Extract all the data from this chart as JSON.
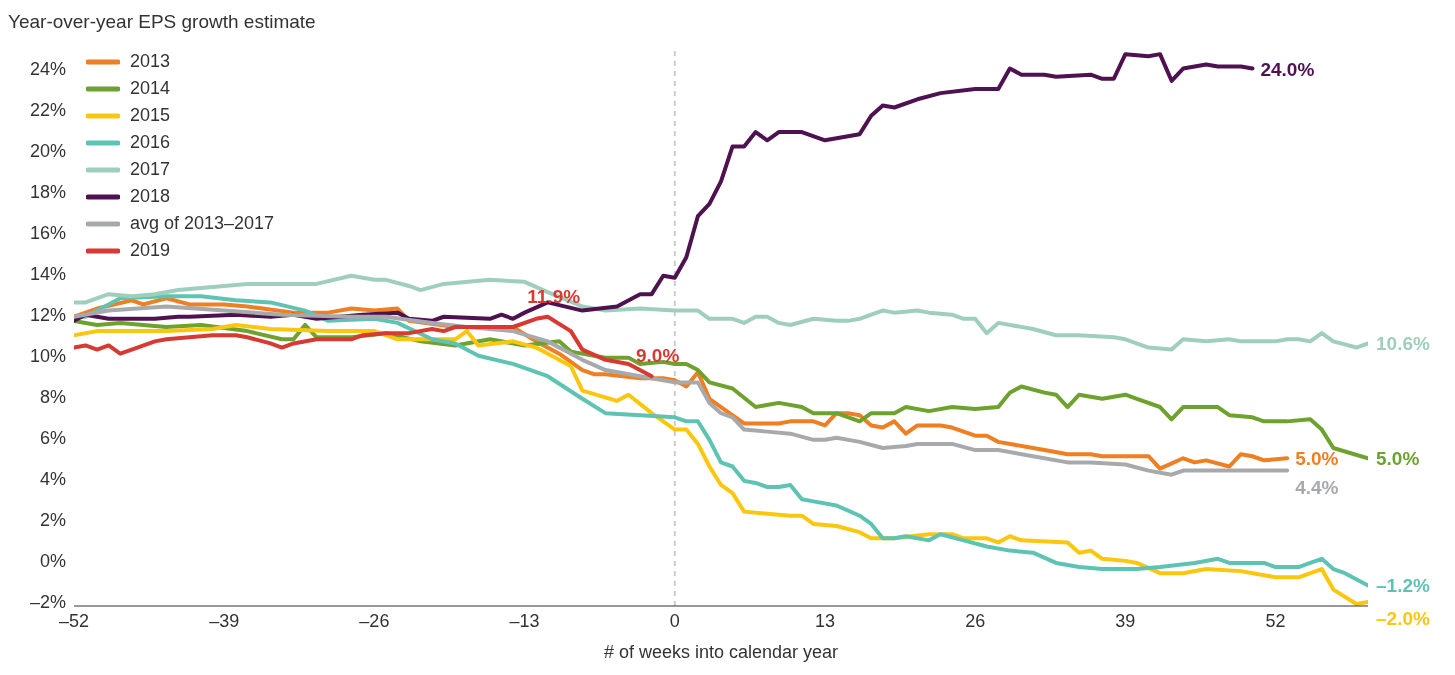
{
  "chart_data": {
    "type": "line",
    "title": "Year-over-year EPS growth estimate",
    "xlabel": "# of weeks into calendar year",
    "xlim": [
      -52,
      60
    ],
    "xticks": [
      {
        "value": -52,
        "label": "–52"
      },
      {
        "value": -39,
        "label": "–39"
      },
      {
        "value": -26,
        "label": "–26"
      },
      {
        "value": -13,
        "label": "–13"
      },
      0,
      13,
      26,
      39,
      52
    ],
    "ylim": [
      -2.2,
      25
    ],
    "yticks": [
      {
        "value": -2,
        "label": "–2%"
      },
      {
        "value": 0,
        "label": "0%"
      },
      {
        "value": 2,
        "label": "2%"
      },
      {
        "value": 4,
        "label": "4%"
      },
      {
        "value": 6,
        "label": "6%"
      },
      {
        "value": 8,
        "label": "8%"
      },
      {
        "value": 10,
        "label": "10%"
      },
      {
        "value": 12,
        "label": "12%"
      },
      {
        "value": 14,
        "label": "14%"
      },
      {
        "value": 16,
        "label": "16%"
      },
      {
        "value": 18,
        "label": "18%"
      },
      {
        "value": 20,
        "label": "20%"
      },
      {
        "value": 22,
        "label": "22%"
      },
      {
        "value": 24,
        "label": "24%"
      }
    ],
    "legend": "top left",
    "ref_lines": [
      {
        "axis": "x",
        "value": 0,
        "color": "#cccccc",
        "line_style": "dashed"
      }
    ],
    "series": [
      {
        "name": "2013",
        "color": "#ee7f22",
        "x": [
          -52,
          -50,
          -47,
          -46,
          -44,
          -42,
          -39,
          -37,
          -33,
          -30,
          -28,
          -26,
          -24,
          -23,
          -19,
          -16,
          -14,
          -12,
          -10,
          -8,
          -7,
          -6,
          -3,
          -1,
          0,
          1,
          2,
          3,
          4,
          6,
          9,
          10,
          12,
          13,
          14,
          15,
          16,
          17,
          18,
          19,
          20,
          21,
          23,
          24,
          26,
          27,
          28,
          31,
          32,
          34,
          36,
          37,
          41,
          42,
          44,
          45,
          46,
          48,
          49,
          50,
          51,
          53
        ],
        "values": [
          11.9,
          12.3,
          12.7,
          12.5,
          12.8,
          12.5,
          12.5,
          12.4,
          12.1,
          12.1,
          12.3,
          12.2,
          12.3,
          11.7,
          11.4,
          11.4,
          11.4,
          10.7,
          10.1,
          9.3,
          9.1,
          9.1,
          8.9,
          8.9,
          8.8,
          8.5,
          9.2,
          7.9,
          7.5,
          6.7,
          6.7,
          6.8,
          6.8,
          6.6,
          7.2,
          7.2,
          7.1,
          6.6,
          6.5,
          6.8,
          6.2,
          6.6,
          6.6,
          6.5,
          6.1,
          6.1,
          5.8,
          5.5,
          5.4,
          5.2,
          5.2,
          5.1,
          5.1,
          4.5,
          5.0,
          4.8,
          4.9,
          4.6,
          5.2,
          5.1,
          4.9,
          5.0
        ]
      },
      {
        "name": "2014",
        "color": "#6da22f",
        "x": [
          -52,
          -50,
          -48,
          -44,
          -41,
          -37,
          -34,
          -33,
          -32,
          -31,
          -28,
          -25,
          -22,
          -19,
          -16,
          -13,
          -10,
          -9,
          -6,
          -4,
          -3,
          -1,
          0,
          1,
          2,
          3,
          5,
          7,
          9,
          11,
          12,
          14,
          16,
          17,
          19,
          20,
          22,
          24,
          26,
          28,
          29,
          30,
          32,
          33,
          34,
          35,
          37,
          39,
          40,
          42,
          43,
          44,
          47,
          48,
          50,
          51,
          53,
          55,
          56,
          57,
          60
        ],
        "values": [
          11.7,
          11.5,
          11.6,
          11.4,
          11.5,
          11.2,
          10.8,
          10.8,
          11.5,
          10.9,
          10.9,
          11.1,
          10.7,
          10.5,
          10.8,
          10.5,
          10.7,
          10.2,
          9.9,
          9.9,
          9.6,
          9.7,
          9.6,
          9.6,
          9.3,
          8.7,
          8.4,
          7.5,
          7.7,
          7.5,
          7.2,
          7.2,
          6.8,
          7.2,
          7.2,
          7.5,
          7.3,
          7.5,
          7.4,
          7.5,
          8.2,
          8.5,
          8.2,
          8.1,
          7.5,
          8.1,
          7.9,
          8.1,
          7.9,
          7.5,
          6.9,
          7.5,
          7.5,
          7.1,
          7.0,
          6.8,
          6.8,
          6.9,
          6.4,
          5.5,
          5.0
        ]
      },
      {
        "name": "2015",
        "color": "#fbc70e",
        "x": [
          -52,
          -50,
          -44,
          -40,
          -38,
          -35,
          -30,
          -26,
          -24,
          -19,
          -18,
          -17,
          -14,
          -12,
          -9,
          -8,
          -5,
          -4,
          -2,
          0,
          1,
          2,
          3,
          4,
          5,
          6,
          8,
          10,
          11,
          12,
          14,
          16,
          17,
          19,
          22,
          24,
          25,
          27,
          28,
          29,
          30,
          34,
          35,
          36,
          37,
          39,
          40,
          42,
          44,
          46,
          49,
          52,
          54,
          56,
          57,
          59,
          60
        ],
        "values": [
          11.0,
          11.2,
          11.2,
          11.3,
          11.5,
          11.3,
          11.2,
          11.2,
          10.8,
          10.8,
          11.2,
          10.5,
          10.7,
          10.4,
          9.5,
          8.3,
          7.8,
          8.1,
          7.2,
          6.4,
          6.4,
          5.7,
          4.6,
          3.7,
          3.3,
          2.4,
          2.3,
          2.2,
          2.2,
          1.8,
          1.7,
          1.4,
          1.1,
          1.1,
          1.3,
          1.3,
          1.1,
          1.1,
          0.9,
          1.2,
          1.0,
          0.9,
          0.4,
          0.5,
          0.1,
          0.0,
          -0.1,
          -0.6,
          -0.6,
          -0.4,
          -0.5,
          -0.8,
          -0.8,
          -0.4,
          -1.4,
          -2.1,
          -2.0
        ]
      },
      {
        "name": "2016",
        "color": "#5fc3b4",
        "x": [
          -52,
          -51,
          -49,
          -48,
          -44,
          -41,
          -38,
          -35,
          -32,
          -30,
          -26,
          -24,
          -21,
          -19,
          -17,
          -14,
          -11,
          -8,
          -6,
          -3,
          0,
          1,
          2,
          3,
          4,
          5,
          6,
          7,
          8,
          9,
          10,
          11,
          12,
          14,
          16,
          17,
          18,
          19,
          20,
          22,
          23,
          25,
          27,
          29,
          31,
          33,
          35,
          37,
          40,
          42,
          45,
          47,
          48,
          51,
          52,
          54,
          55,
          56,
          57,
          58,
          60
        ],
        "values": [
          11.9,
          11.9,
          12.5,
          12.8,
          12.9,
          12.9,
          12.7,
          12.6,
          12.2,
          11.7,
          11.8,
          11.6,
          10.8,
          10.6,
          10.0,
          9.6,
          9.0,
          7.9,
          7.2,
          7.1,
          7.0,
          6.8,
          6.8,
          5.9,
          4.8,
          4.6,
          3.9,
          3.8,
          3.6,
          3.6,
          3.7,
          3.0,
          2.9,
          2.7,
          2.2,
          1.8,
          1.1,
          1.1,
          1.2,
          1.0,
          1.3,
          1.0,
          0.7,
          0.5,
          0.4,
          -0.1,
          -0.3,
          -0.4,
          -0.4,
          -0.3,
          -0.1,
          0.1,
          -0.1,
          -0.1,
          -0.3,
          -0.3,
          -0.1,
          0.1,
          -0.4,
          -0.6,
          -1.2
        ]
      },
      {
        "name": "2017",
        "color": "#9fcfbc",
        "x": [
          -52,
          -51,
          -49,
          -47,
          -45,
          -43,
          -39,
          -37,
          -33,
          -31,
          -28,
          -26,
          -25,
          -23,
          -22,
          -20,
          -16,
          -13,
          -11,
          -8,
          -6,
          -3,
          0,
          2,
          3,
          5,
          6,
          7,
          8,
          9,
          10,
          12,
          14,
          15,
          16,
          17,
          18,
          19,
          21,
          22,
          24,
          25,
          26,
          27,
          28,
          31,
          33,
          35,
          38,
          39,
          41,
          43,
          44,
          46,
          48,
          49,
          52,
          53,
          54,
          55,
          56,
          57,
          59,
          60
        ],
        "values": [
          12.6,
          12.6,
          13.0,
          12.9,
          13.0,
          13.2,
          13.4,
          13.5,
          13.5,
          13.5,
          13.9,
          13.7,
          13.7,
          13.4,
          13.2,
          13.5,
          13.7,
          13.6,
          13.1,
          12.4,
          12.2,
          12.3,
          12.2,
          12.2,
          11.8,
          11.8,
          11.6,
          11.9,
          11.9,
          11.6,
          11.5,
          11.8,
          11.7,
          11.7,
          11.8,
          12.0,
          12.2,
          12.1,
          12.2,
          12.1,
          12.0,
          11.8,
          11.8,
          11.1,
          11.6,
          11.3,
          11.0,
          11.0,
          10.9,
          10.8,
          10.4,
          10.3,
          10.8,
          10.7,
          10.8,
          10.7,
          10.7,
          10.8,
          10.8,
          10.7,
          11.1,
          10.7,
          10.4,
          10.6
        ]
      },
      {
        "name": "2018",
        "color": "#4f1250",
        "x": [
          -52,
          -51,
          -49,
          -45,
          -43,
          -42,
          -38,
          -35,
          -33,
          -31,
          -29,
          -27,
          -24,
          -23,
          -21,
          -20,
          -16,
          -15,
          -14,
          -13,
          -11,
          -8,
          -5,
          -3,
          -2,
          -1,
          0,
          1,
          2,
          3,
          4,
          5,
          6,
          7,
          8,
          9,
          11,
          13,
          16,
          17,
          18,
          19,
          21,
          23,
          26,
          28,
          29,
          30,
          32,
          33,
          36,
          37,
          38,
          39,
          41,
          42,
          43,
          44,
          46,
          47,
          49,
          50
        ],
        "values": [
          11.7,
          12.0,
          11.8,
          11.8,
          11.9,
          11.9,
          12.0,
          11.9,
          12.0,
          11.8,
          11.9,
          12.0,
          12.1,
          11.8,
          11.7,
          11.9,
          11.8,
          12.0,
          11.8,
          12.1,
          12.6,
          12.2,
          12.4,
          13.0,
          13.0,
          13.9,
          13.8,
          14.8,
          16.8,
          17.4,
          18.5,
          20.2,
          20.2,
          20.9,
          20.5,
          20.9,
          20.9,
          20.5,
          20.8,
          21.7,
          22.2,
          22.1,
          22.5,
          22.8,
          23.0,
          23.0,
          24.0,
          23.7,
          23.7,
          23.6,
          23.7,
          23.5,
          23.5,
          24.7,
          24.6,
          24.7,
          23.4,
          24.0,
          24.2,
          24.1,
          24.1,
          24.0
        ]
      },
      {
        "name": "avg of 2013–2017",
        "color": "#a7a9ac",
        "x": [
          -52,
          -49,
          -44,
          -39,
          -34,
          -28,
          -25,
          -21,
          -18,
          -14,
          -11,
          -8,
          -6,
          -3,
          0,
          2,
          3,
          4,
          5,
          6,
          8,
          10,
          12,
          13,
          14,
          16,
          18,
          20,
          21,
          24,
          26,
          28,
          31,
          34,
          36,
          39,
          41,
          43,
          44,
          46,
          48,
          50,
          53
        ],
        "values": [
          11.9,
          12.2,
          12.4,
          12.2,
          12.0,
          11.9,
          11.9,
          11.6,
          11.4,
          11.2,
          10.7,
          9.8,
          9.3,
          9.0,
          8.7,
          8.7,
          7.7,
          7.2,
          7.0,
          6.4,
          6.3,
          6.2,
          5.9,
          5.9,
          6.0,
          5.8,
          5.5,
          5.6,
          5.7,
          5.7,
          5.4,
          5.4,
          5.1,
          4.8,
          4.8,
          4.7,
          4.4,
          4.2,
          4.4,
          4.4,
          4.4,
          4.4,
          4.4
        ]
      },
      {
        "name": "2019",
        "color": "#d73a33",
        "x": [
          -52,
          -51,
          -50,
          -49,
          -48,
          -47,
          -45,
          -44,
          -42,
          -40,
          -38,
          -37,
          -35,
          -34,
          -33,
          -31,
          -28,
          -27,
          -25,
          -23,
          -21,
          -20,
          -19,
          -14,
          -12,
          -11,
          -9,
          -8,
          -6,
          -4,
          -2
        ],
        "values": [
          10.4,
          10.5,
          10.3,
          10.5,
          10.1,
          10.3,
          10.7,
          10.8,
          10.9,
          11.0,
          11.0,
          10.9,
          10.6,
          10.4,
          10.6,
          10.8,
          10.8,
          11.0,
          11.1,
          11.1,
          11.3,
          11.2,
          11.4,
          11.4,
          11.8,
          11.9,
          11.2,
          10.3,
          9.8,
          9.6,
          9.0
        ]
      }
    ],
    "annotations": [
      {
        "text": "11.9%",
        "x": -11,
        "y": 11.9
      },
      {
        "text": "9.0%",
        "x": -2,
        "y": 9.0
      },
      {
        "text": "24.0%",
        "x": 50,
        "y": 24.0
      },
      {
        "text": "10.6%",
        "x": 60,
        "y": 10.6
      },
      {
        "text": "5.0%",
        "x": 53,
        "y": 5.0
      },
      {
        "text": "4.4%",
        "x": 53,
        "y": 4.4
      },
      {
        "text": "5.0%",
        "x": 60,
        "y": 5.0
      },
      {
        "text": "–1.2%",
        "x": 60,
        "y": -1.2
      },
      {
        "text": "–2.0%",
        "x": 60,
        "y": -2.0
      }
    ]
  }
}
